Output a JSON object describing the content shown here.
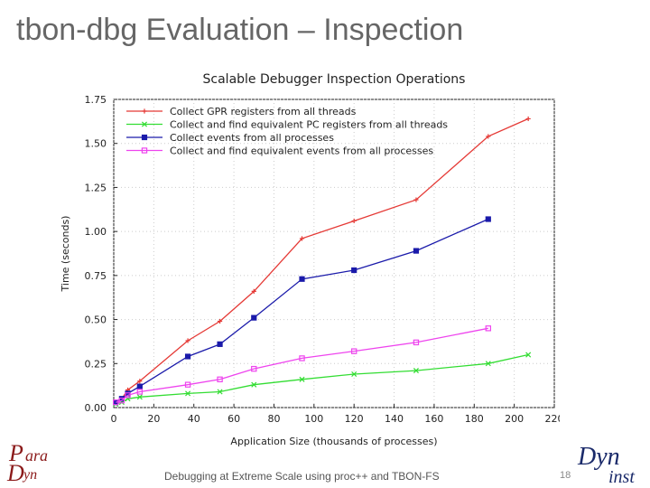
{
  "slide": {
    "title": "tbon-dbg Evaluation – Inspection",
    "footer": "Debugging at Extreme Scale using proc++ and TBON-FS",
    "page_number": "18",
    "logos": [
      {
        "name": "paradyn-logo",
        "text": "Paradyn"
      },
      {
        "name": "dyninst-logo",
        "text": "Dyninst"
      }
    ]
  },
  "chart_data": {
    "type": "line",
    "title": "Scalable Debugger Inspection Operations",
    "xlabel": "Application Size (thousands of processes)",
    "ylabel": "Time (seconds)",
    "xlim": [
      0,
      220
    ],
    "ylim": [
      0,
      1.75
    ],
    "x_ticks": [
      0,
      20,
      40,
      60,
      80,
      100,
      120,
      140,
      160,
      180,
      200,
      220
    ],
    "y_ticks": [
      "0.00",
      "0.25",
      "0.50",
      "0.75",
      "1.00",
      "1.25",
      "1.50",
      "1.75"
    ],
    "grid": true,
    "legend_position": "top-left",
    "series": [
      {
        "name": "Collect GPR registers from all threads",
        "color": "#e53935",
        "marker": "plus",
        "x": [
          1,
          4,
          7,
          13,
          37,
          53,
          70,
          94,
          120,
          151,
          187,
          207
        ],
        "y": [
          0.03,
          0.05,
          0.1,
          0.15,
          0.38,
          0.49,
          0.66,
          0.96,
          1.06,
          1.18,
          1.54,
          1.64
        ]
      },
      {
        "name": "Collect and find equivalent PC registers from all threads",
        "color": "#33dd33",
        "marker": "cross",
        "x": [
          1,
          4,
          7,
          13,
          37,
          53,
          70,
          94,
          120,
          151,
          187,
          207
        ],
        "y": [
          0.02,
          0.03,
          0.05,
          0.06,
          0.08,
          0.09,
          0.13,
          0.16,
          0.19,
          0.21,
          0.25,
          0.3
        ]
      },
      {
        "name": "Collect events from all processes",
        "color": "#1a1aaa",
        "marker": "square",
        "x": [
          1,
          4,
          7,
          13,
          37,
          53,
          70,
          94,
          120,
          151,
          187
        ],
        "y": [
          0.03,
          0.05,
          0.08,
          0.12,
          0.29,
          0.36,
          0.51,
          0.73,
          0.78,
          0.89,
          1.07
        ]
      },
      {
        "name": "Collect and find equivalent events from all processes",
        "color": "#ee44ee",
        "marker": "open-square",
        "x": [
          1,
          4,
          7,
          13,
          37,
          53,
          70,
          94,
          120,
          151,
          187
        ],
        "y": [
          0.03,
          0.04,
          0.07,
          0.09,
          0.13,
          0.16,
          0.22,
          0.28,
          0.32,
          0.37,
          0.45
        ]
      }
    ]
  }
}
